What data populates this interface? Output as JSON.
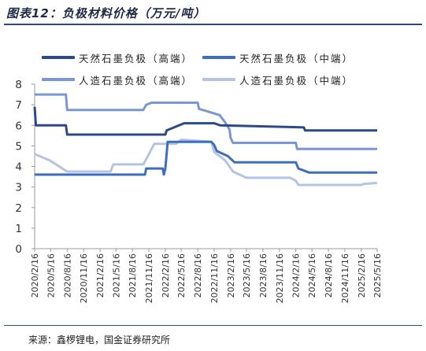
{
  "title": "图表12：负极材料价格（万元/吨）",
  "source": "来源：鑫椤锂电，国金证券研究所",
  "colors": {
    "series1": "#2c4a86",
    "series2": "#3e6fbf",
    "series3": "#7b97d2",
    "series4": "#b5c3e5",
    "rule": "#2e4a7a"
  },
  "chart_data": {
    "type": "line",
    "title": "负极材料价格（万元/吨）",
    "xlabel": "",
    "ylabel": "",
    "ylim": [
      0,
      8
    ],
    "yticks": [
      0,
      1,
      2,
      3,
      4,
      5,
      6,
      7,
      8
    ],
    "grid": false,
    "legend_position": "top",
    "x_ticks": [
      "2020/2/16",
      "2020/5/16",
      "2020/8/16",
      "2020/11/16",
      "2021/2/16",
      "2021/5/16",
      "2021/8/16",
      "2021/11/16",
      "2022/2/16",
      "2022/5/16",
      "2022/8/16",
      "2022/11/16",
      "2023/2/16",
      "2023/5/16",
      "2023/8/16",
      "2023/11/16",
      "2024/2/16",
      "2024/5/16",
      "2024/8/16",
      "2024/11/16",
      "2025/2/16",
      "2025/5/16"
    ],
    "series": [
      {
        "name": "天然石墨负极（高端）",
        "color": "#2c4a86",
        "points": [
          [
            "2020/2/16",
            6.9
          ],
          [
            "2020/2/23",
            6.0
          ],
          [
            "2020/8/9",
            6.0
          ],
          [
            "2020/8/16",
            5.55
          ],
          [
            "2022/2/16",
            5.55
          ],
          [
            "2022/2/23",
            5.75
          ],
          [
            "2022/6/1",
            6.1
          ],
          [
            "2022/11/16",
            6.1
          ],
          [
            "2022/12/20",
            6.0
          ],
          [
            "2024/4/1",
            5.9
          ],
          [
            "2024/4/8",
            5.75
          ],
          [
            "2025/5/16",
            5.75
          ]
        ]
      },
      {
        "name": "天然石墨负极（中端）",
        "color": "#3e6fbf",
        "points": [
          [
            "2020/2/16",
            3.6
          ],
          [
            "2021/10/25",
            3.6
          ],
          [
            "2021/11/1",
            3.9
          ],
          [
            "2022/2/1",
            3.9
          ],
          [
            "2022/2/8",
            3.6
          ],
          [
            "2022/2/16",
            3.9
          ],
          [
            "2022/3/1",
            5.2
          ],
          [
            "2022/11/1",
            5.2
          ],
          [
            "2022/11/16",
            5.05
          ],
          [
            "2022/12/1",
            4.75
          ],
          [
            "2023/2/1",
            4.5
          ],
          [
            "2023/3/10",
            4.2
          ],
          [
            "2024/2/16",
            4.2
          ],
          [
            "2024/3/1",
            3.9
          ],
          [
            "2024/5/1",
            3.7
          ],
          [
            "2025/5/16",
            3.7
          ]
        ]
      },
      {
        "name": "人造石墨负极（高端）",
        "color": "#7b97d2",
        "points": [
          [
            "2020/2/16",
            7.5
          ],
          [
            "2020/8/9",
            7.5
          ],
          [
            "2020/8/16",
            6.75
          ],
          [
            "2021/10/16",
            6.75
          ],
          [
            "2021/11/1",
            7.0
          ],
          [
            "2021/12/1",
            7.1
          ],
          [
            "2022/8/16",
            7.1
          ],
          [
            "2022/8/23",
            6.8
          ],
          [
            "2022/12/16",
            6.5
          ],
          [
            "2023/1/16",
            6.15
          ],
          [
            "2023/2/10",
            5.8
          ],
          [
            "2023/2/16",
            5.4
          ],
          [
            "2023/3/1",
            5.15
          ],
          [
            "2024/2/16",
            5.15
          ],
          [
            "2024/2/23",
            4.85
          ],
          [
            "2025/5/16",
            4.85
          ]
        ]
      },
      {
        "name": "人造石墨负极（中端）",
        "color": "#b5c3e5",
        "points": [
          [
            "2020/2/16",
            4.6
          ],
          [
            "2020/5/10",
            4.3
          ],
          [
            "2020/8/16",
            3.75
          ],
          [
            "2021/4/16",
            3.75
          ],
          [
            "2021/5/1",
            4.1
          ],
          [
            "2021/10/16",
            4.1
          ],
          [
            "2021/11/16",
            4.6
          ],
          [
            "2021/12/16",
            5.1
          ],
          [
            "2022/4/16",
            5.1
          ],
          [
            "2022/5/16",
            5.3
          ],
          [
            "2022/11/1",
            5.2
          ],
          [
            "2022/11/16",
            4.7
          ],
          [
            "2023/1/16",
            4.3
          ],
          [
            "2023/3/1",
            3.75
          ],
          [
            "2023/5/16",
            3.45
          ],
          [
            "2024/1/16",
            3.45
          ],
          [
            "2024/2/16",
            3.3
          ],
          [
            "2024/3/1",
            3.1
          ],
          [
            "2025/2/16",
            3.1
          ],
          [
            "2025/3/1",
            3.15
          ],
          [
            "2025/5/16",
            3.2
          ]
        ]
      }
    ]
  }
}
